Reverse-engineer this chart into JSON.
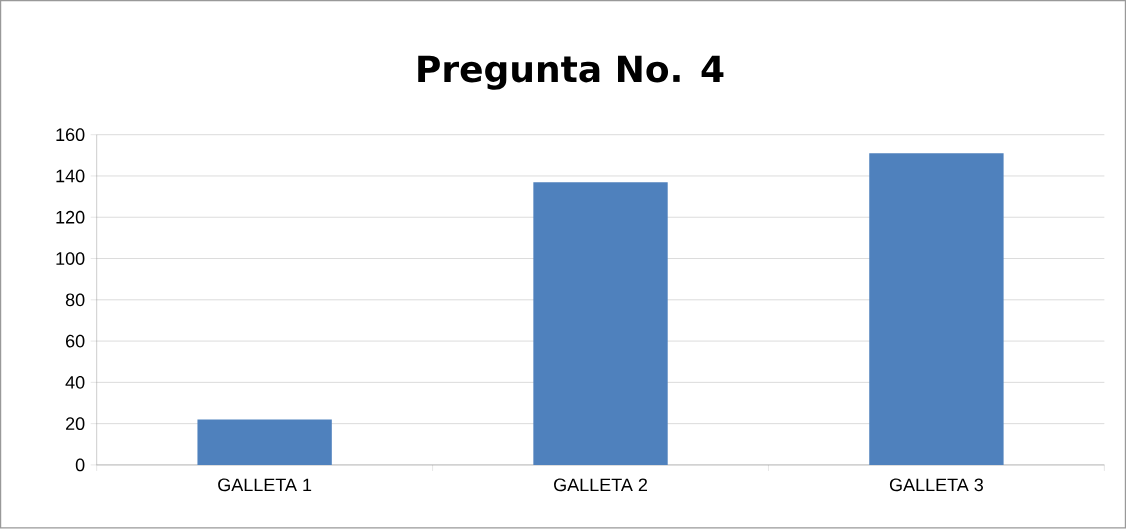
{
  "chart_data": {
    "type": "bar",
    "title": "Pregunta No. 4",
    "categories": [
      "GALLETA 1",
      "GALLETA 2",
      "GALLETA 3"
    ],
    "values": [
      22,
      137,
      151
    ],
    "color": "#4f81bd",
    "ylim": [
      0,
      160
    ],
    "yticks": [
      0,
      20,
      40,
      60,
      80,
      100,
      120,
      140,
      160
    ],
    "grid": "y"
  }
}
